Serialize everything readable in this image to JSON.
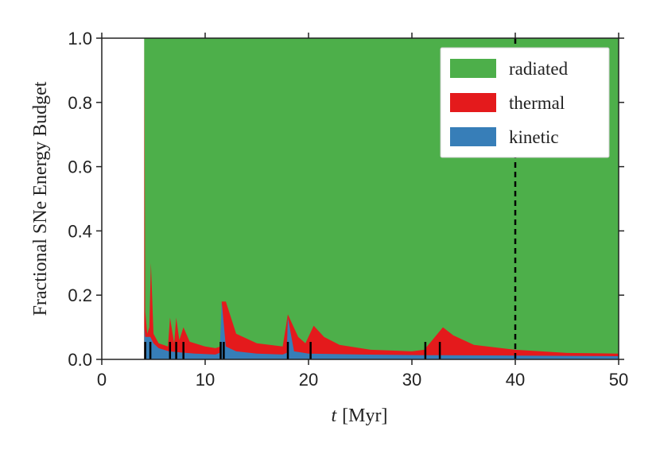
{
  "chart_data": {
    "type": "area",
    "title": "",
    "xlabel_italic": "t",
    "xlabel_unit": "[Myr]",
    "ylabel": "Fractional SNe Energy Budget",
    "xlim": [
      0,
      50
    ],
    "ylim": [
      0,
      1.0
    ],
    "xticks": [
      0,
      10,
      20,
      30,
      40,
      50
    ],
    "xtick_labels": [
      "0",
      "10",
      "20",
      "30",
      "40",
      "50"
    ],
    "yticks": [
      0.0,
      0.2,
      0.4,
      0.6,
      0.8,
      1.0
    ],
    "ytick_labels": [
      "0.0",
      "0.2",
      "0.4",
      "0.6",
      "0.8",
      "1.0"
    ],
    "legend_position": "top-right",
    "legend": [
      "radiated",
      "thermal",
      "kinetic"
    ],
    "colors": {
      "radiated": "#4daf4a",
      "thermal": "#e41a1c",
      "kinetic": "#377eb8"
    },
    "stack_order": [
      "kinetic",
      "thermal",
      "radiated"
    ],
    "start_time": 4.1,
    "vline_x": 40,
    "sn_event_times": [
      4.2,
      4.7,
      6.6,
      7.2,
      7.9,
      11.5,
      11.8,
      18.0,
      20.2,
      31.3,
      32.7
    ],
    "kinetic_boundary": [
      [
        4.1,
        0.0
      ],
      [
        4.12,
        0.1
      ],
      [
        4.2,
        0.07
      ],
      [
        4.7,
        0.07
      ],
      [
        5.0,
        0.05
      ],
      [
        5.5,
        0.035
      ],
      [
        6.5,
        0.025
      ],
      [
        7.5,
        0.022
      ],
      [
        9.0,
        0.018
      ],
      [
        11.0,
        0.015
      ],
      [
        11.4,
        0.02
      ],
      [
        11.6,
        0.18
      ],
      [
        12.0,
        0.04
      ],
      [
        13.0,
        0.025
      ],
      [
        15.0,
        0.018
      ],
      [
        17.5,
        0.015
      ],
      [
        17.9,
        0.02
      ],
      [
        18.0,
        0.13
      ],
      [
        18.6,
        0.025
      ],
      [
        20.0,
        0.018
      ],
      [
        25.0,
        0.015
      ],
      [
        31.0,
        0.013
      ],
      [
        33.0,
        0.013
      ],
      [
        40.0,
        0.012
      ],
      [
        50.0,
        0.01
      ]
    ],
    "total_boundary": [
      [
        4.1,
        0.0
      ],
      [
        4.12,
        1.0
      ],
      [
        4.2,
        0.15
      ],
      [
        4.4,
        0.08
      ],
      [
        4.6,
        0.1
      ],
      [
        4.75,
        0.3
      ],
      [
        5.0,
        0.08
      ],
      [
        5.5,
        0.05
      ],
      [
        6.4,
        0.04
      ],
      [
        6.6,
        0.13
      ],
      [
        7.0,
        0.05
      ],
      [
        7.2,
        0.13
      ],
      [
        7.5,
        0.06
      ],
      [
        7.9,
        0.1
      ],
      [
        8.5,
        0.055
      ],
      [
        10.0,
        0.04
      ],
      [
        11.0,
        0.035
      ],
      [
        11.5,
        0.04
      ],
      [
        11.6,
        0.18
      ],
      [
        12.0,
        0.18
      ],
      [
        13.0,
        0.08
      ],
      [
        15.0,
        0.05
      ],
      [
        17.5,
        0.04
      ],
      [
        18.0,
        0.14
      ],
      [
        19.0,
        0.07
      ],
      [
        19.7,
        0.05
      ],
      [
        20.5,
        0.105
      ],
      [
        21.5,
        0.07
      ],
      [
        23.0,
        0.045
      ],
      [
        26.0,
        0.03
      ],
      [
        30.0,
        0.025
      ],
      [
        31.2,
        0.03
      ],
      [
        33.0,
        0.1
      ],
      [
        34.0,
        0.075
      ],
      [
        36.0,
        0.045
      ],
      [
        40.0,
        0.03
      ],
      [
        45.0,
        0.02
      ],
      [
        50.0,
        0.018
      ]
    ]
  }
}
